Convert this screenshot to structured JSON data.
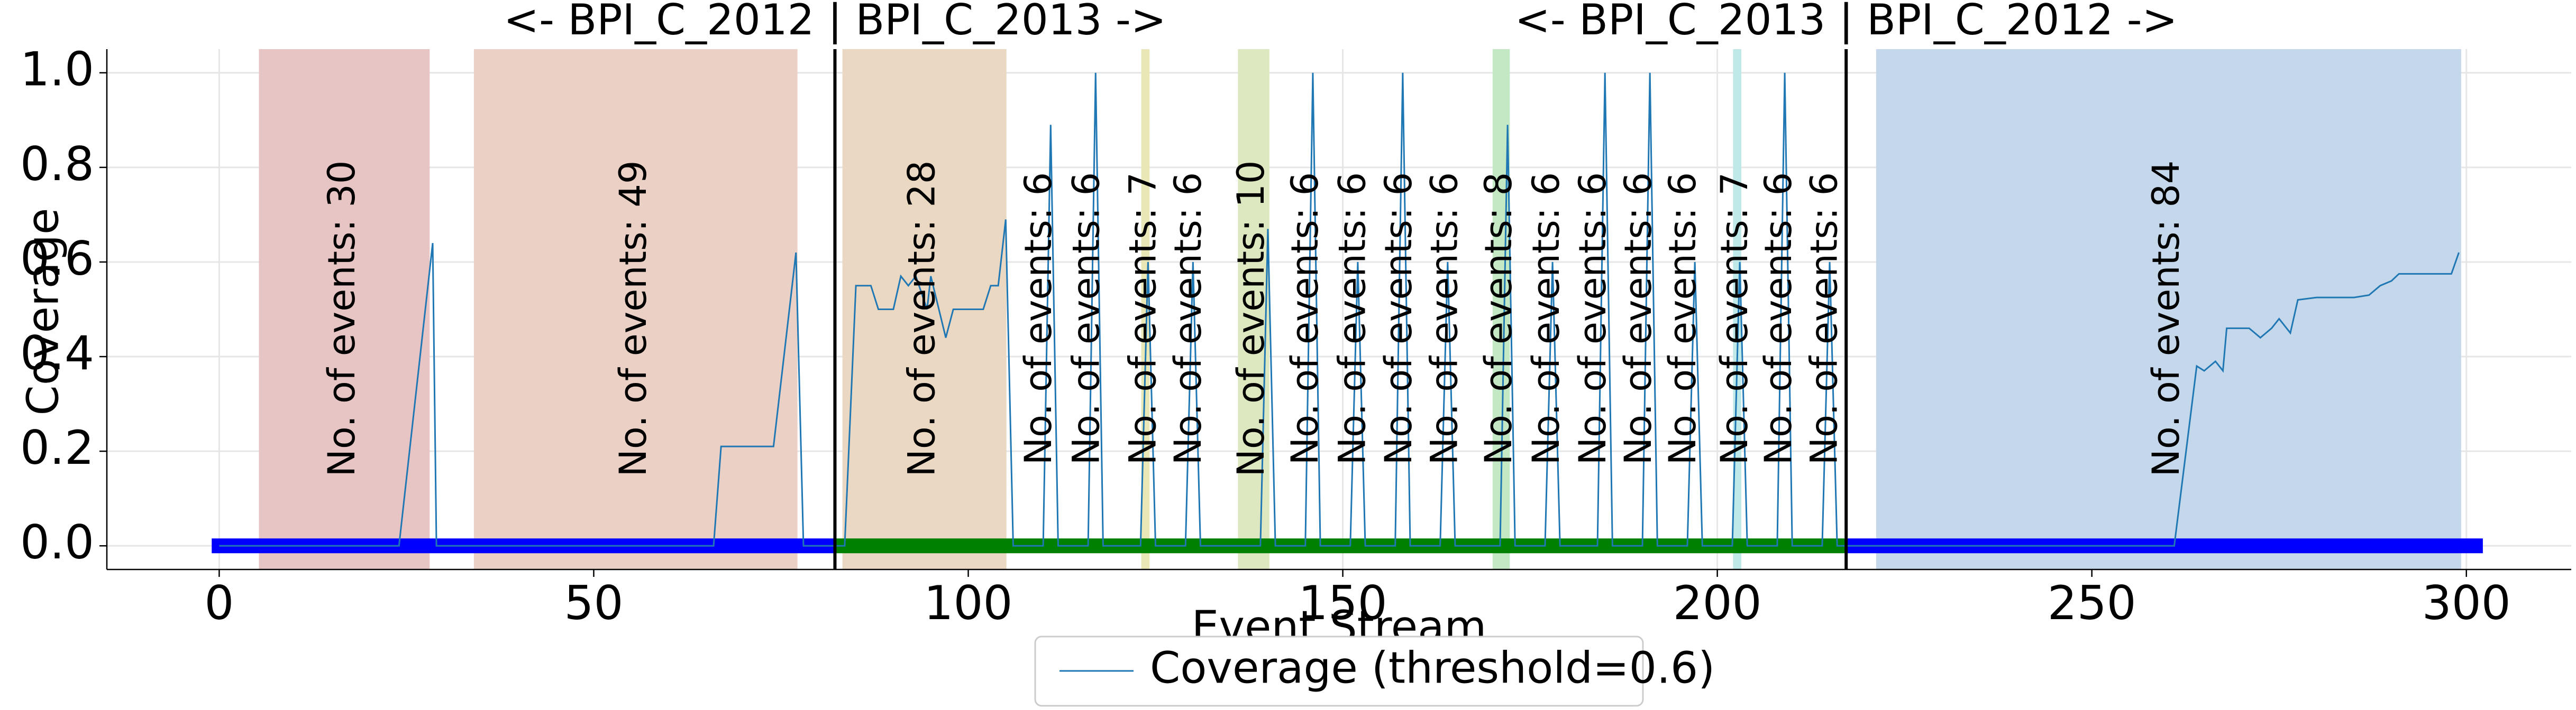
{
  "chart_data": {
    "type": "line",
    "x_label": "Event Stream",
    "y_label": "Coverage",
    "xlim": [
      -15,
      314
    ],
    "ylim": [
      -0.05,
      1.05
    ],
    "xticks": [
      0,
      50,
      100,
      150,
      200,
      250,
      300
    ],
    "yticks": [
      {
        "value": 0,
        "label": "0.0"
      },
      0.2,
      0.4,
      0.6,
      0.8,
      {
        "value": 1,
        "label": "1.0"
      }
    ],
    "grid": true,
    "legend_position": "lower center",
    "series": [
      {
        "name": "Coverage (threshold=0.6)",
        "color": "#1f77b4",
        "x": [
          0,
          24,
          28.5,
          29,
          66,
          67,
          74,
          77,
          78,
          83.5,
          85,
          87,
          88,
          90,
          91,
          92,
          93,
          94.5,
          95,
          97,
          98,
          102,
          103,
          104,
          105,
          106,
          110,
          111,
          112,
          116,
          117,
          118,
          123,
          124,
          125,
          129,
          130,
          131,
          139,
          140,
          141,
          145,
          146,
          147,
          151,
          152,
          153,
          157,
          158,
          159,
          163,
          164,
          165,
          171,
          172,
          173,
          177,
          178,
          179,
          184,
          185,
          186,
          190,
          191,
          192,
          196,
          197,
          198,
          202,
          203,
          204,
          208,
          209,
          210,
          214,
          215,
          216,
          261,
          264,
          265,
          266.5,
          267.5,
          268,
          271,
          272.5,
          274,
          275,
          276.5,
          277.5,
          280,
          285,
          287,
          288.5,
          290,
          291,
          298,
          299
        ],
        "values": [
          0,
          0,
          0.64,
          0,
          0,
          0.21,
          0.21,
          0.62,
          0,
          0,
          0.55,
          0.55,
          0.5,
          0.5,
          0.57,
          0.55,
          0.57,
          0.5,
          0.57,
          0.44,
          0.5,
          0.5,
          0.55,
          0.55,
          0.69,
          0,
          0,
          0.89,
          0,
          0,
          1.0,
          0,
          0,
          0.6,
          0,
          0,
          0.6,
          0,
          0,
          0.67,
          0,
          0,
          1.0,
          0,
          0,
          0.6,
          0,
          0,
          1.0,
          0,
          0,
          0.6,
          0,
          0,
          0.89,
          0,
          0,
          0.6,
          0,
          0,
          1.0,
          0,
          0,
          1.0,
          0,
          0,
          0.6,
          0,
          0,
          0.6,
          0,
          0,
          1.0,
          0,
          0,
          0.6,
          0,
          0,
          0.38,
          0.37,
          0.39,
          0.37,
          0.46,
          0.46,
          0.44,
          0.46,
          0.48,
          0.45,
          0.52,
          0.525,
          0.525,
          0.53,
          0.55,
          0.56,
          0.575,
          0.575,
          0.62
        ]
      }
    ],
    "spans": [
      {
        "start": 5.3,
        "end": 28.1,
        "color": "#e8c5c5",
        "label": "No. of events: 30"
      },
      {
        "start": 34,
        "end": 77.2,
        "color": "#ebd0c5",
        "label": "No. of events: 49"
      },
      {
        "start": 83.2,
        "end": 105.1,
        "color": "#ebd8c3",
        "label": "No. of events: 28"
      },
      {
        "start": 109.7,
        "end": 109.7,
        "label": "No. of events: 6"
      },
      {
        "start": 116.1,
        "end": 116.1,
        "label": "No. of events: 6"
      },
      {
        "start": 123.1,
        "end": 124.2,
        "color": "#e8e7b5",
        "label": "No. of events: 7"
      },
      {
        "start": 129.7,
        "end": 129.7,
        "label": "No. of events: 6"
      },
      {
        "start": 136,
        "end": 140.2,
        "color": "#dde8c0",
        "label": "No. of events: 10"
      },
      {
        "start": 145.3,
        "end": 145.3,
        "label": "No. of events: 6"
      },
      {
        "start": 151.6,
        "end": 151.6,
        "label": "No. of events: 6"
      },
      {
        "start": 157.8,
        "end": 157.8,
        "label": "No. of events: 6"
      },
      {
        "start": 163.9,
        "end": 163.9,
        "label": "No. of events: 6"
      },
      {
        "start": 170,
        "end": 172.3,
        "color": "#c4e8c4",
        "label": "No. of events: 8"
      },
      {
        "start": 177.5,
        "end": 177.5,
        "label": "No. of events: 6"
      },
      {
        "start": 183.7,
        "end": 183.7,
        "label": "No. of events: 6"
      },
      {
        "start": 189.8,
        "end": 189.8,
        "label": "No. of events: 6"
      },
      {
        "start": 195.7,
        "end": 195.7,
        "label": "No. of events: 6"
      },
      {
        "start": 202.1,
        "end": 203.2,
        "color": "#bfe8e8",
        "label": "No. of events: 7"
      },
      {
        "start": 208.5,
        "end": 208.5,
        "label": "No. of events: 6"
      },
      {
        "start": 214.6,
        "end": 214.6,
        "label": "No. of events: 6"
      },
      {
        "start": 221.2,
        "end": 299.3,
        "color": "#c5d8eb",
        "label": "No. of events: 84"
      }
    ],
    "boundaries": [
      {
        "x": 82.2,
        "label": "<- BPI_C_2012 | BPI_C_2013 ->"
      },
      {
        "x": 217.2,
        "label": "<- BPI_C_2013 | BPI_C_2012 ->"
      }
    ],
    "stream_bars": [
      {
        "start": -1,
        "end": 82.2,
        "color": "#0000ff"
      },
      {
        "start": 82.2,
        "end": 217.2,
        "color": "#008000"
      },
      {
        "start": 217.2,
        "end": 302.2,
        "color": "#0000ff"
      }
    ]
  }
}
